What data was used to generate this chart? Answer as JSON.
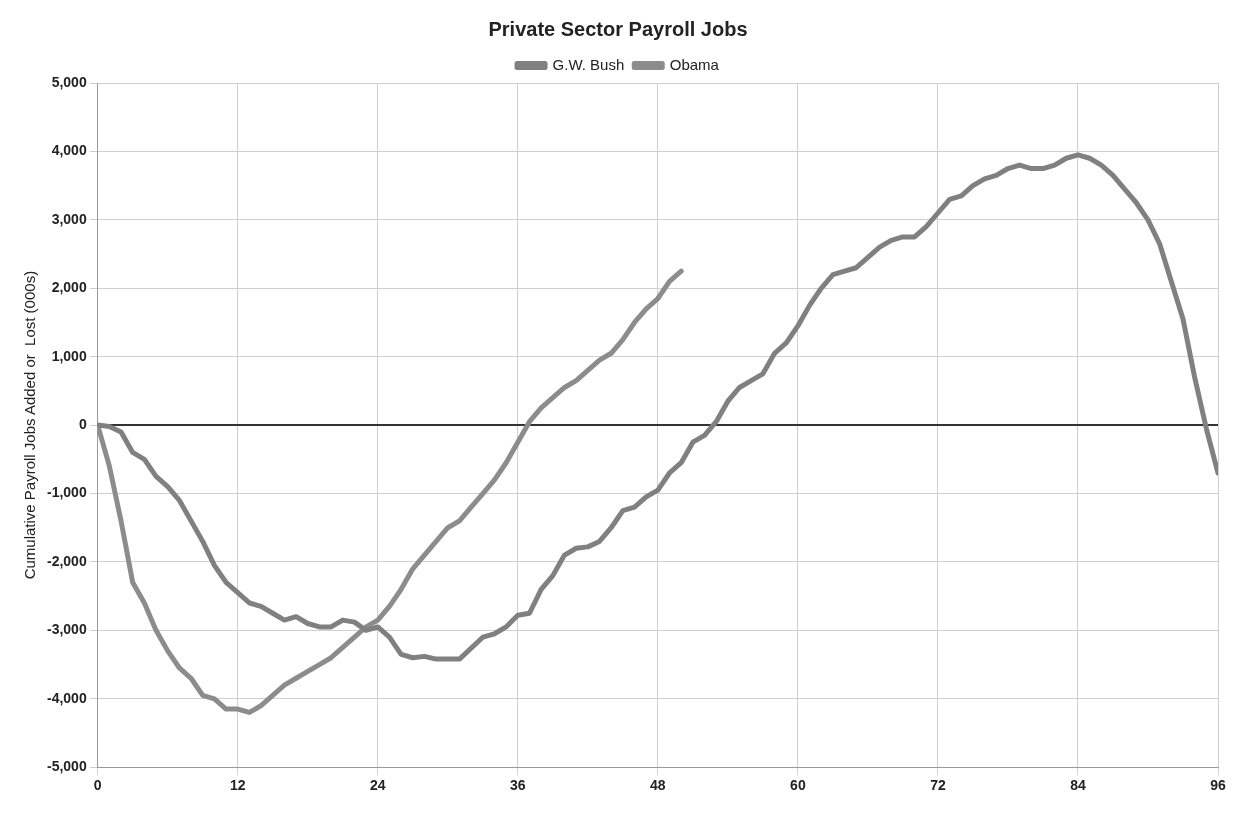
{
  "chart_data": {
    "type": "line",
    "title": "Private Sector Payroll Jobs",
    "ylabel": "Cumulative Payroll Jobs Added or  Lost (000s)",
    "xlim": [
      0,
      96
    ],
    "xticks": [
      0,
      12,
      24,
      36,
      48,
      60,
      72,
      84,
      96
    ],
    "ylim": [
      -5000,
      5000
    ],
    "yticks": [
      {
        "value": -5000,
        "label": "-5,000"
      },
      {
        "value": -4000,
        "label": "-4,000"
      },
      {
        "value": -3000,
        "label": "-3,000"
      },
      {
        "value": -2000,
        "label": "-2,000"
      },
      {
        "value": -1000,
        "label": "-1,000"
      },
      0,
      {
        "value": 1000,
        "label": "1,000"
      },
      {
        "value": 2000,
        "label": "2,000"
      },
      {
        "value": 3000,
        "label": "3,000"
      },
      {
        "value": 4000,
        "label": "4,000"
      },
      {
        "value": 5000,
        "label": "5,000"
      }
    ],
    "grid": true,
    "legend": "top",
    "marker": "none",
    "line_style": "solid",
    "ref_lines": [
      {
        "axis": "y",
        "value": 0,
        "color": "#333333"
      }
    ],
    "series": [
      {
        "name": "G.W. Bush",
        "color": "#808080",
        "x": [
          0,
          1,
          2,
          3,
          4,
          5,
          6,
          7,
          8,
          9,
          10,
          11,
          12,
          13,
          14,
          15,
          16,
          17,
          18,
          19,
          20,
          21,
          22,
          23,
          24,
          25,
          26,
          27,
          28,
          29,
          31,
          33,
          34,
          35,
          36,
          37,
          38,
          39,
          40,
          41,
          42,
          43,
          44,
          45,
          46,
          47,
          48,
          49,
          50,
          51,
          52,
          53,
          54,
          55,
          56,
          57,
          58,
          59,
          60,
          61,
          62,
          63,
          64,
          65,
          66,
          67,
          68,
          69,
          70,
          71,
          72,
          73,
          74,
          75,
          76,
          77,
          78,
          79,
          80,
          81,
          82,
          83,
          84,
          85,
          86,
          87,
          88,
          89,
          90,
          91,
          92,
          93,
          94,
          95,
          96
        ],
        "values": [
          0,
          -20,
          -100,
          -400,
          -500,
          -750,
          -900,
          -1100,
          -1400,
          -1700,
          -2050,
          -2300,
          -2450,
          -2600,
          -2650,
          -2750,
          -2850,
          -2800,
          -2900,
          -2950,
          -2950,
          -2850,
          -2880,
          -3000,
          -2950,
          -3100,
          -3350,
          -3400,
          -3380,
          -3420,
          -3420,
          -3100,
          -3050,
          -2950,
          -2780,
          -2750,
          -2400,
          -2200,
          -1900,
          -1800,
          -1780,
          -1700,
          -1500,
          -1250,
          -1200,
          -1050,
          -950,
          -700,
          -550,
          -250,
          -150,
          50,
          350,
          550,
          650,
          750,
          1050,
          1200,
          1450,
          1750,
          2000,
          2200,
          2250,
          2300,
          2450,
          2600,
          2700,
          2750,
          2750,
          2900,
          3100,
          3300,
          3350,
          3500,
          3600,
          3650,
          3750,
          3800,
          3750,
          3750,
          3800,
          3900,
          3950,
          3900,
          3800,
          3650,
          3450,
          3250,
          3000,
          2650,
          2100,
          1550,
          700,
          -50,
          -700
        ]
      },
      {
        "name": "Obama",
        "color": "#8c8c8c",
        "x": [
          0,
          1,
          2,
          3,
          4,
          5,
          6,
          7,
          8,
          9,
          10,
          11,
          12,
          13,
          14,
          15,
          16,
          17,
          18,
          19,
          20,
          21,
          22,
          23,
          24,
          25,
          26,
          27,
          28,
          29,
          30,
          31,
          32,
          33,
          34,
          35,
          36,
          37,
          38,
          39,
          40,
          41,
          42,
          43,
          44,
          45,
          46,
          47,
          48,
          49,
          50
        ],
        "values": [
          0,
          -600,
          -1400,
          -2300,
          -2600,
          -3000,
          -3300,
          -3550,
          -3700,
          -3950,
          -4000,
          -4150,
          -4150,
          -4200,
          -4100,
          -3950,
          -3800,
          -3700,
          -3600,
          -3500,
          -3400,
          -3250,
          -3100,
          -2950,
          -2850,
          -2650,
          -2400,
          -2100,
          -1900,
          -1700,
          -1500,
          -1400,
          -1200,
          -1000,
          -800,
          -550,
          -250,
          50,
          250,
          400,
          550,
          650,
          800,
          950,
          1050,
          1250,
          1500,
          1700,
          1850,
          2100,
          2250
        ]
      }
    ]
  }
}
